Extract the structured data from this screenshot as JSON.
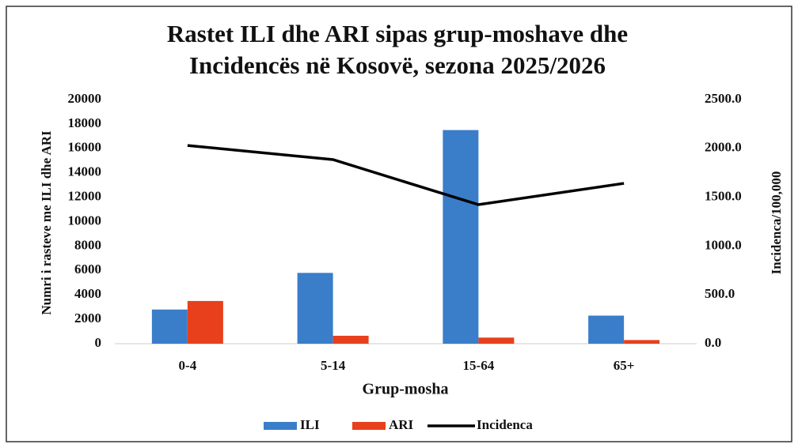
{
  "chart_data": {
    "type": "bar",
    "title": [
      "Rastet ILI dhe ARI sipas grup-moshave dhe",
      "Incidencës në Kosovë, sezona 2025/2026"
    ],
    "x_label": "Grup-mosha",
    "y_label": "Numri i rasteve me ILI dhe ARI",
    "y2_label": "Incidenca/100,000",
    "categories": [
      "0-4",
      "5-14",
      "15-64",
      "65+"
    ],
    "series": [
      {
        "name": "ILI",
        "type": "bar",
        "color": "#3a7dc9",
        "values": [
          2800,
          5800,
          17500,
          2300
        ]
      },
      {
        "name": "ARI",
        "type": "bar",
        "color": "#e8401c",
        "values": [
          3500,
          650,
          500,
          300
        ]
      },
      {
        "name": "Incidenca",
        "type": "line",
        "axis": "y2",
        "color": "#000000",
        "values": [
          2030,
          1885,
          1424,
          1642
        ]
      }
    ],
    "ylim": [
      0,
      20000
    ],
    "yticks": [
      0,
      2000,
      4000,
      6000,
      8000,
      10000,
      12000,
      14000,
      16000,
      18000,
      20000
    ],
    "y2lim": [
      0,
      2500
    ],
    "y2ticks": [
      {
        "value": 0,
        "label": "0.0"
      },
      {
        "value": 500,
        "label": "500.0"
      },
      {
        "value": 1000,
        "label": "1000.0"
      },
      {
        "value": 1500,
        "label": "1500.0"
      },
      {
        "value": 2000,
        "label": "2000.0"
      },
      {
        "value": 2500,
        "label": "2500.0"
      }
    ],
    "grid": false,
    "legend": "bottom"
  }
}
